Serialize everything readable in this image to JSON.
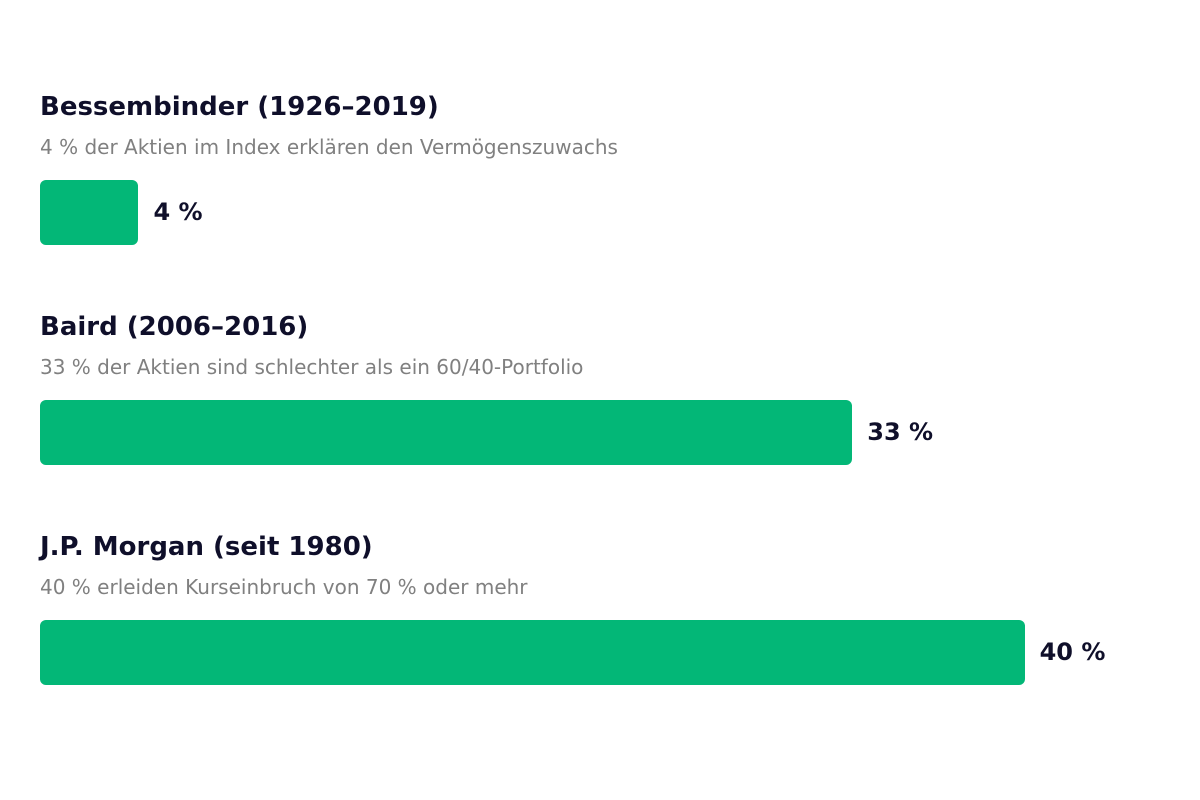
{
  "chart_data": {
    "type": "bar",
    "orientation": "horizontal",
    "title": "",
    "xlabel": "",
    "ylabel": "",
    "xlim": [
      0,
      45.5
    ],
    "grid": false,
    "legend": "none",
    "bar_color": "#03b777",
    "categories": [
      {
        "title": "Bessembinder (1926–2019)",
        "subtitle": "4 % der Aktien im Index erklären den Vermögenszuwachs",
        "value": 4,
        "label": "4 %"
      },
      {
        "title": "Baird (2006–2016)",
        "subtitle": "33 % der Aktien sind schlechter als ein 60/40-Portfolio",
        "value": 33,
        "label": "33 %"
      },
      {
        "title": "J.P. Morgan (seit 1980)",
        "subtitle": "40 % erleiden Kurseinbruch von 70 % oder mehr",
        "value": 40,
        "label": "40 %"
      }
    ]
  }
}
